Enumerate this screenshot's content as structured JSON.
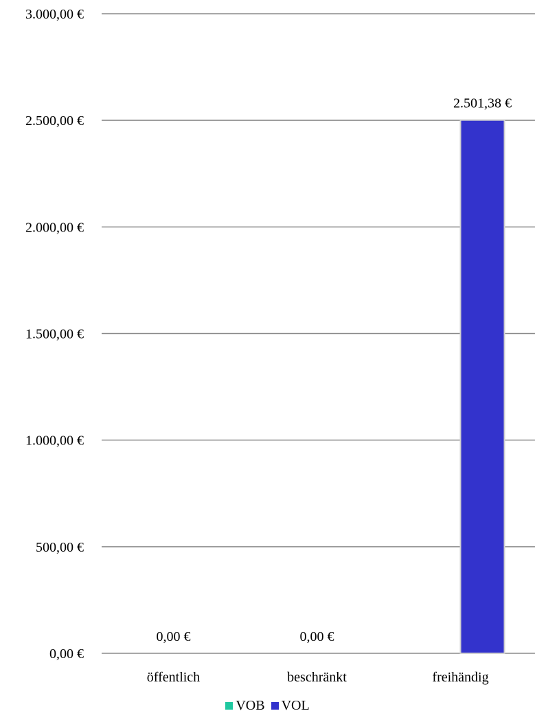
{
  "chart_data": {
    "type": "bar",
    "categories": [
      "öffentlich",
      "beschränkt",
      "freihändig"
    ],
    "series": [
      {
        "name": "VOB",
        "color": "#1fc8a0",
        "values": [
          0,
          0,
          0
        ]
      },
      {
        "name": "VOL",
        "color": "#3333cc",
        "values": [
          0,
          0,
          2501.38
        ]
      }
    ],
    "ylim": [
      0,
      3000
    ],
    "yticks": [
      0,
      500,
      1000,
      1500,
      2000,
      2500,
      3000
    ],
    "ytick_labels": [
      "0,00 €",
      "500,00 €",
      "1.000,00 €",
      "1.500,00 €",
      "2.000,00 €",
      "2.500,00 €",
      "3.000,00 €"
    ],
    "data_labels": [
      {
        "category": "öffentlich",
        "text": "0,00 €"
      },
      {
        "category": "beschränkt",
        "text": "0,00 €"
      },
      {
        "category": "freihändig",
        "text": "2.501,38 €"
      }
    ],
    "grid": true,
    "legend_position": "bottom",
    "title": "",
    "xlabel": "",
    "ylabel": ""
  }
}
